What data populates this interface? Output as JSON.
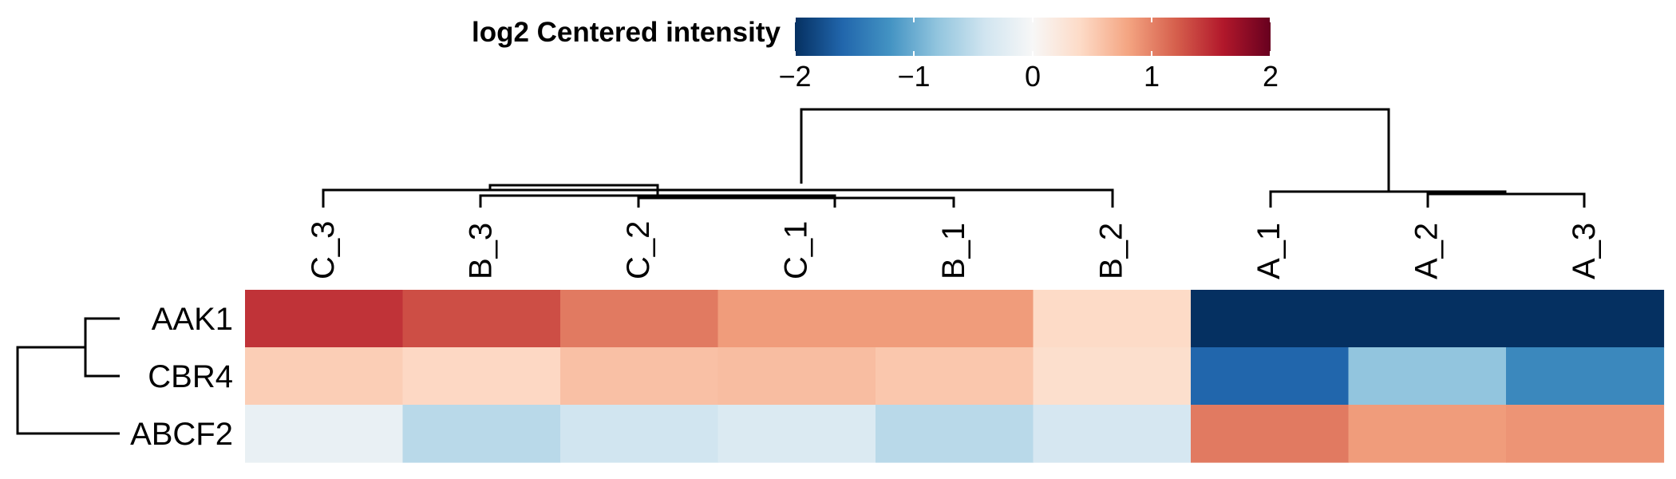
{
  "chart_data": {
    "type": "heatmap",
    "legend": {
      "title": "log2 Centered intensity",
      "ticks": [
        -2,
        -1,
        0,
        1,
        2
      ],
      "tick_labels": [
        "−2",
        "−1",
        "0",
        "1",
        "2"
      ],
      "range": [
        -2,
        2
      ],
      "colors": [
        "#053061",
        "#2166ac",
        "#4393c3",
        "#92c5de",
        "#d1e5f0",
        "#f7f7f7",
        "#fddbc7",
        "#f4a582",
        "#d6604d",
        "#b2182b",
        "#67001f"
      ]
    },
    "columns": [
      "C_3",
      "B_3",
      "C_2",
      "C_1",
      "B_1",
      "B_2",
      "A_1",
      "A_2",
      "A_3"
    ],
    "rows": [
      "AAK1",
      "CBR4",
      "ABCF2"
    ],
    "values": [
      [
        1.45,
        1.3,
        1.05,
        0.85,
        0.85,
        0.4,
        -2.0,
        -2.0,
        -2.0
      ],
      [
        0.5,
        0.42,
        0.6,
        0.62,
        0.55,
        0.35,
        -1.6,
        -0.8,
        -1.3
      ],
      [
        -0.15,
        -0.55,
        -0.4,
        -0.3,
        -0.55,
        -0.35,
        1.05,
        0.85,
        0.9
      ]
    ],
    "column_dendrogram": "clustered: A_1, A_2, A_3 vs C_3, B_3, C_2, C_1, B_1, B_2",
    "row_dendrogram": "clustered: AAK1, CBR4 vs ABCF2"
  }
}
